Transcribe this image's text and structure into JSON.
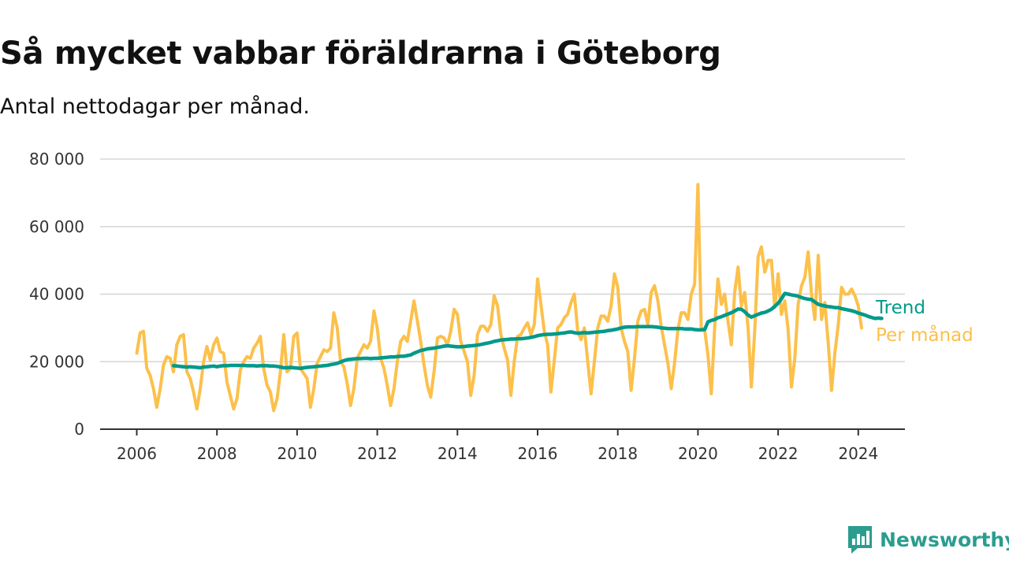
{
  "title": "Så mycket vabbar föräldrarna i Göteborg",
  "subtitle": "Antal nettodagar per månad.",
  "brand": {
    "name": "Newsworthy",
    "icon": "bar-chart-speech-bubble-icon",
    "color": "#2a9d8f"
  },
  "chart_data": {
    "type": "line",
    "title": "Så mycket vabbar föräldrarna i Göteborg",
    "subtitle": "Antal nettodagar per månad.",
    "xlabel": "",
    "ylabel": "",
    "xlim": [
      2005.75,
      2025.0
    ],
    "ylim": [
      0,
      80000
    ],
    "yticks": [
      0,
      20000,
      40000,
      60000,
      80000
    ],
    "ytick_labels": [
      "0",
      "20 000",
      "40 000",
      "60 000",
      "80 000"
    ],
    "xticks": [
      2006,
      2008,
      2010,
      2012,
      2014,
      2016,
      2018,
      2020,
      2022,
      2024
    ],
    "xtick_labels": [
      "2006",
      "2008",
      "2010",
      "2012",
      "2014",
      "2016",
      "2018",
      "2020",
      "2022",
      "2024"
    ],
    "grid": "horizontal",
    "legend": "direct labels at line ends",
    "series": [
      {
        "name": "Per månad",
        "color": "#fcc04b",
        "start": "2006-01",
        "values": [
          22500,
          28500,
          29000,
          18000,
          16000,
          12000,
          6500,
          12000,
          19000,
          21500,
          21000,
          17000,
          25000,
          27500,
          28000,
          17000,
          15000,
          11000,
          6000,
          12000,
          20000,
          24500,
          20500,
          25000,
          27000,
          23000,
          22500,
          14000,
          10000,
          6000,
          9000,
          17500,
          20000,
          21500,
          21000,
          24000,
          25500,
          27500,
          18000,
          13000,
          11000,
          5500,
          9000,
          17000,
          28000,
          17000,
          18000,
          27500,
          28500,
          18000,
          16500,
          15000,
          6500,
          12000,
          19500,
          21500,
          23500,
          23000,
          24000,
          34500,
          30000,
          20000,
          18500,
          13500,
          7000,
          12000,
          21000,
          23000,
          25000,
          24000,
          26000,
          35000,
          30000,
          21000,
          18000,
          13000,
          7000,
          12000,
          20000,
          26000,
          27500,
          26000,
          32000,
          38000,
          32000,
          26000,
          19000,
          13000,
          9500,
          17000,
          27000,
          27500,
          27000,
          25000,
          29000,
          35500,
          34000,
          26000,
          23000,
          20000,
          10000,
          16000,
          28000,
          30500,
          30500,
          29000,
          31000,
          39500,
          36500,
          28000,
          24000,
          20500,
          10000,
          20000,
          27500,
          28000,
          30000,
          31500,
          28000,
          31000,
          44500,
          37000,
          29000,
          25000,
          11000,
          20500,
          30000,
          31000,
          33000,
          34000,
          37500,
          40000,
          29000,
          26500,
          30000,
          20000,
          10500,
          20000,
          30000,
          33500,
          33500,
          32000,
          36500,
          46000,
          42000,
          30000,
          26000,
          23000,
          11500,
          21000,
          32000,
          35000,
          35500,
          31000,
          40500,
          42500,
          38000,
          30500,
          25000,
          19500,
          12000,
          19500,
          29500,
          34500,
          34500,
          32500,
          40000,
          43000,
          72500,
          30000,
          29500,
          22000,
          10500,
          30000,
          44500,
          37000,
          40000,
          32000,
          25000,
          40500,
          48000,
          36500,
          40500,
          30000,
          12500,
          29000,
          51000,
          54000,
          46500,
          50000,
          50000,
          36000,
          46000,
          34000,
          38000,
          29500,
          12500,
          21000,
          37000,
          42500,
          45000,
          52500,
          40000,
          32500,
          51500,
          32500,
          37500,
          25500,
          11500,
          22500,
          31000,
          42000,
          40000,
          40000,
          41500,
          39500,
          36500,
          30000
        ]
      },
      {
        "name": "Trend",
        "color": "#00998a",
        "start": "2006-12",
        "values": [
          18800,
          18700,
          18600,
          18500,
          18400,
          18500,
          18400,
          18300,
          18200,
          18400,
          18500,
          18600,
          18700,
          18500,
          18700,
          18800,
          18800,
          18900,
          18900,
          18900,
          18900,
          18900,
          18800,
          18800,
          18800,
          18700,
          18800,
          18800,
          18800,
          18700,
          18700,
          18600,
          18400,
          18200,
          18200,
          18300,
          18200,
          18100,
          18000,
          18200,
          18300,
          18400,
          18500,
          18600,
          18700,
          18800,
          18900,
          19100,
          19300,
          19500,
          19900,
          20300,
          20600,
          20700,
          20800,
          20900,
          20900,
          21000,
          21000,
          20900,
          21000,
          21000,
          21100,
          21200,
          21300,
          21400,
          21400,
          21500,
          21600,
          21600,
          21800,
          22000,
          22500,
          22900,
          23300,
          23500,
          23800,
          23900,
          24000,
          24200,
          24400,
          24600,
          24700,
          24600,
          24500,
          24400,
          24400,
          24500,
          24600,
          24700,
          24800,
          24900,
          25100,
          25300,
          25500,
          25700,
          26000,
          26200,
          26400,
          26500,
          26600,
          26700,
          26700,
          26800,
          26800,
          26900,
          27000,
          27200,
          27400,
          27700,
          27900,
          28000,
          28100,
          28100,
          28200,
          28300,
          28400,
          28500,
          28700,
          28800,
          28600,
          28400,
          28500,
          28600,
          28500,
          28600,
          28700,
          28800,
          28900,
          29000,
          29200,
          29300,
          29500,
          29700,
          30000,
          30200,
          30300,
          30300,
          30300,
          30400,
          30400,
          30400,
          30400,
          30400,
          30300,
          30200,
          30000,
          29900,
          29800,
          29800,
          29800,
          29800,
          29800,
          29700,
          29700,
          29700,
          29500,
          29400,
          29400,
          29500,
          31800,
          32200,
          32500,
          33000,
          33300,
          33700,
          34100,
          34500,
          35000,
          35600,
          35500,
          34800,
          33800,
          33200,
          33600,
          34000,
          34400,
          34600,
          35000,
          35500,
          36400,
          37300,
          38600,
          40200,
          40000,
          39800,
          39600,
          39400,
          39000,
          38700,
          38500,
          38400,
          37700,
          37000,
          36700,
          36500,
          36300,
          36200,
          36000,
          36000,
          35700,
          35500,
          35300,
          35100,
          34800,
          34400,
          34100,
          33800,
          33400,
          33100,
          32800,
          32900,
          32800
        ]
      }
    ]
  }
}
